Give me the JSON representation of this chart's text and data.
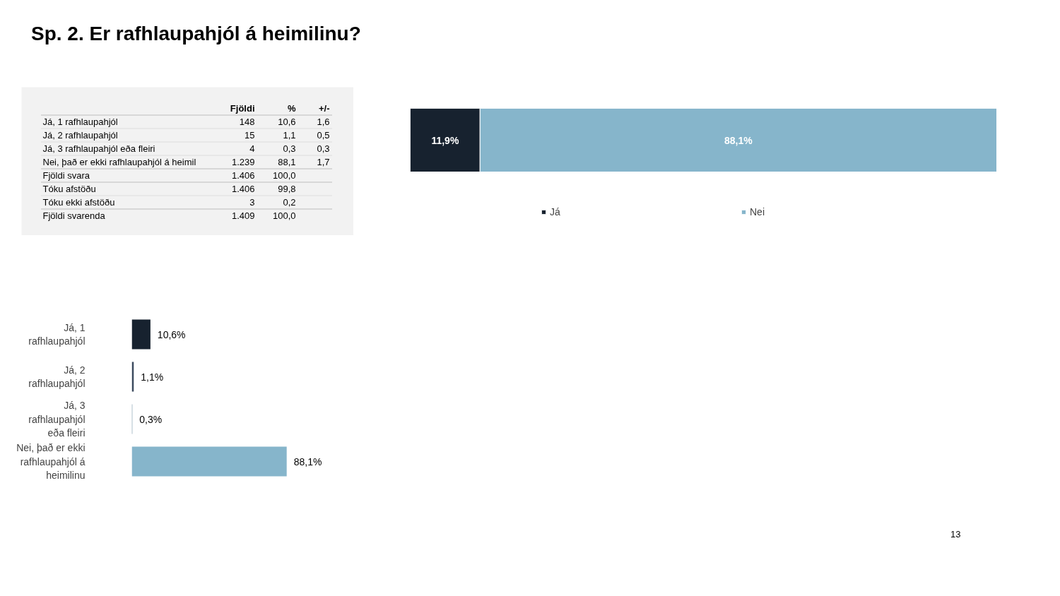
{
  "chart_data": [
    {
      "type": "other",
      "title": "Sp. 2. Er rafhlaupahjól á heimilinu?",
      "categories": [
        "Já, 1 rafhlaupahjól",
        "Já, 2 rafhlaupahjól",
        "Já, 3 rafhlaupahjól eða fleiri",
        "Nei, það er ekki rafhlaupahjól á heimil",
        "Fjöldi svara",
        "Tóku afstöðu",
        "Tóku ekki afstöðu",
        "Fjöldi svarenda"
      ],
      "series": [
        {
          "name": "Fjöldi",
          "values": [
            148,
            15,
            4,
            1239,
            1406,
            1406,
            3,
            1409
          ],
          "value_labels": [
            "148",
            "15",
            "4",
            "1.239",
            "1.406",
            "1.406",
            "3",
            "1.409"
          ]
        },
        {
          "name": "%",
          "values": [
            10.6,
            1.1,
            0.3,
            88.1,
            100.0,
            99.8,
            0.2,
            100.0
          ],
          "value_labels": [
            "10,6",
            "1,1",
            "0,3",
            "88,1",
            "100,0",
            "99,8",
            "0,2",
            "100,0"
          ]
        },
        {
          "name": "+/-",
          "values": [
            1.6,
            0.5,
            0.3,
            1.7,
            null,
            null,
            null,
            null
          ],
          "value_labels": [
            "1,6",
            "0,5",
            "0,3",
            "1,7",
            null,
            null,
            null,
            null
          ]
        }
      ]
    },
    {
      "type": "bar",
      "orientation": "horizontal",
      "stacked": true,
      "legend": "bottom",
      "categories": [
        null
      ],
      "series": [
        {
          "name": "Já",
          "color": "#17222f",
          "values": [
            11.9
          ],
          "value_labels": [
            "11,9%"
          ]
        },
        {
          "name": "Nei",
          "color": "#86b5cb",
          "values": [
            88.1
          ],
          "value_labels": [
            "88,1%"
          ]
        }
      ]
    },
    {
      "type": "bar",
      "orientation": "horizontal",
      "categories": [
        "Já, 1 rafhlaupahjól",
        "Já, 2 rafhlaupahjól",
        "Já, 3 rafhlaupahjól eða fleiri",
        "Nei, það er ekki rafhlaupahjól á heimilinu"
      ],
      "values": [
        10.6,
        1.1,
        0.3,
        88.1
      ],
      "colors": [
        "#17222f",
        "#3b4a5e",
        "#5f8199",
        "#86b5cb"
      ],
      "value_labels": [
        "10,6%",
        "1,1%",
        "0,3%",
        "88,1%"
      ],
      "annotations": [
        "13"
      ]
    }
  ]
}
